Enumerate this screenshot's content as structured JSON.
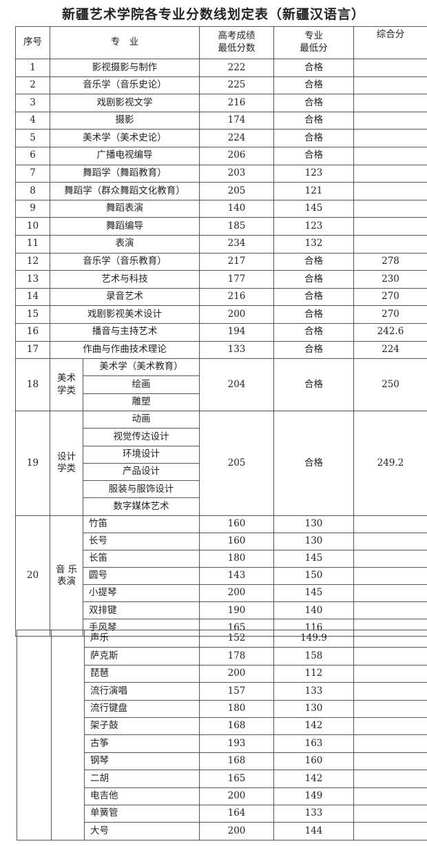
{
  "title": "新疆艺术学院各专业分数线划定表（新疆汉语言）",
  "headers": {
    "no": "序号",
    "major": "专　业",
    "gaokao": "高考成绩\n最低分数",
    "professional": "专业\n最低分",
    "composite": "综合分"
  },
  "rows": [
    {
      "no": "1",
      "major": "影视摄影与制作",
      "gaokao": "222",
      "professional": "合格",
      "composite": ""
    },
    {
      "no": "2",
      "major": "音乐学（音乐史论）",
      "gaokao": "225",
      "professional": "合格",
      "composite": ""
    },
    {
      "no": "3",
      "major": "戏剧影视文学",
      "gaokao": "216",
      "professional": "合格",
      "composite": ""
    },
    {
      "no": "4",
      "major": "摄影",
      "gaokao": "174",
      "professional": "合格",
      "composite": ""
    },
    {
      "no": "5",
      "major": "美术学（美术史论）",
      "gaokao": "224",
      "professional": "合格",
      "composite": ""
    },
    {
      "no": "6",
      "major": "广播电视编导",
      "gaokao": "206",
      "professional": "合格",
      "composite": ""
    },
    {
      "no": "7",
      "major": "舞蹈学（舞蹈教育）",
      "gaokao": "203",
      "professional": "123",
      "composite": ""
    },
    {
      "no": "8",
      "major": "舞蹈学（群众舞蹈文化教育）",
      "gaokao": "205",
      "professional": "121",
      "composite": ""
    },
    {
      "no": "9",
      "major": "舞蹈表演",
      "gaokao": "140",
      "professional": "145",
      "composite": ""
    },
    {
      "no": "10",
      "major": "舞蹈编导",
      "gaokao": "185",
      "professional": "123",
      "composite": ""
    },
    {
      "no": "11",
      "major": "表演",
      "gaokao": "234",
      "professional": "132",
      "composite": ""
    },
    {
      "no": "12",
      "major": "音乐学（音乐教育）",
      "gaokao": "217",
      "professional": "合格",
      "composite": "278"
    },
    {
      "no": "13",
      "major": "艺术与科技",
      "gaokao": "177",
      "professional": "合格",
      "composite": "230"
    },
    {
      "no": "14",
      "major": "录音艺术",
      "gaokao": "216",
      "professional": "合格",
      "composite": "270"
    },
    {
      "no": "15",
      "major": "戏剧影视美术设计",
      "gaokao": "200",
      "professional": "合格",
      "composite": "270"
    },
    {
      "no": "16",
      "major": "播音与主持艺术",
      "gaokao": "194",
      "professional": "合格",
      "composite": "242.6"
    },
    {
      "no": "17",
      "major": "作曲与作曲技术理论",
      "gaokao": "133",
      "professional": "合格",
      "composite": "224"
    }
  ],
  "groups": [
    {
      "no": "18",
      "category": "美术学类",
      "majors": [
        "美术学（美术教育）",
        "绘画",
        "雕塑"
      ],
      "gaokao": "204",
      "professional": "合格",
      "composite": "250"
    },
    {
      "no": "19",
      "category": "设计学类",
      "majors": [
        "动画",
        "视觉传达设计",
        "环境设计",
        "产品设计",
        "服装与服饰设计",
        "数字媒体艺术"
      ],
      "gaokao": "205",
      "professional": "合格",
      "composite": "249.2"
    }
  ],
  "music": {
    "no": "20",
    "category": "音 乐表演",
    "items": [
      {
        "major": "竹笛",
        "gaokao": "160",
        "professional": "130"
      },
      {
        "major": "长号",
        "gaokao": "160",
        "professional": "130"
      },
      {
        "major": "长笛",
        "gaokao": "180",
        "professional": "145"
      },
      {
        "major": "圆号",
        "gaokao": "143",
        "professional": "150"
      },
      {
        "major": "小提琴",
        "gaokao": "200",
        "professional": "145"
      },
      {
        "major": "双排键",
        "gaokao": "190",
        "professional": "140"
      },
      {
        "major": "手风琴",
        "gaokao": "165",
        "professional": "116"
      }
    ],
    "continued": [
      {
        "major": "声乐",
        "gaokao": "152",
        "professional": "149.9"
      },
      {
        "major": "萨克斯",
        "gaokao": "178",
        "professional": "158"
      },
      {
        "major": "琵琶",
        "gaokao": "200",
        "professional": "112"
      },
      {
        "major": "流行演唱",
        "gaokao": "157",
        "professional": "133"
      },
      {
        "major": "流行键盘",
        "gaokao": "180",
        "professional": "130"
      },
      {
        "major": "架子鼓",
        "gaokao": "168",
        "professional": "142"
      },
      {
        "major": "古筝",
        "gaokao": "193",
        "professional": "163"
      },
      {
        "major": "钢琴",
        "gaokao": "168",
        "professional": "160"
      },
      {
        "major": "二胡",
        "gaokao": "165",
        "professional": "142"
      },
      {
        "major": "电吉他",
        "gaokao": "200",
        "professional": "149"
      },
      {
        "major": "单簧管",
        "gaokao": "164",
        "professional": "133"
      },
      {
        "major": "大号",
        "gaokao": "200",
        "professional": "144"
      }
    ]
  }
}
